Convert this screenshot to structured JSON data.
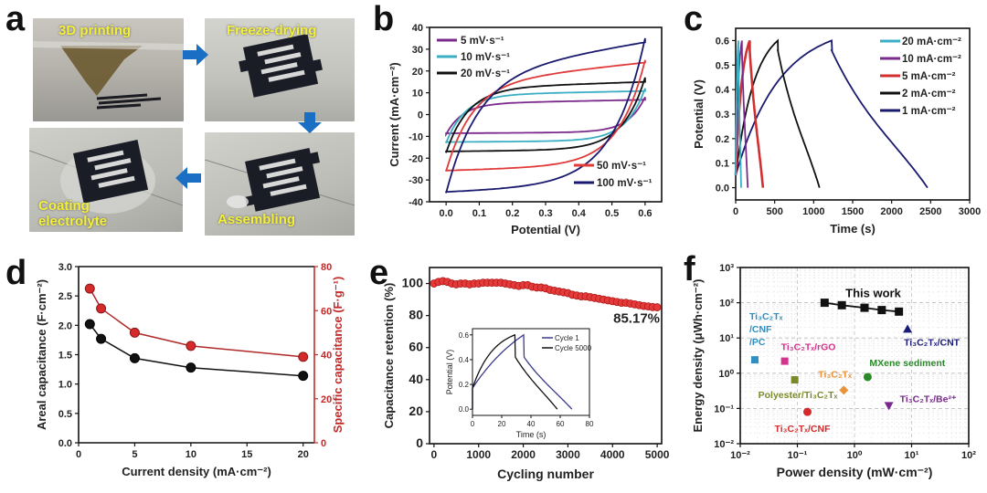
{
  "panels": {
    "a": {
      "letter": "a",
      "steps": [
        {
          "label": "3D printing"
        },
        {
          "label": "Freeze-drying"
        },
        {
          "label": "Assembling"
        },
        {
          "label_line1": "Coating",
          "label_line2": "electrolyte"
        }
      ],
      "arrow_color": "#1a6fc4",
      "label_color": "#f4f03a"
    },
    "b": {
      "letter": "b"
    },
    "c": {
      "letter": "c"
    },
    "d": {
      "letter": "d"
    },
    "e": {
      "letter": "e"
    },
    "f": {
      "letter": "f"
    }
  },
  "chart_data": [
    {
      "id": "b",
      "type": "line",
      "title": "",
      "xlabel": "Potential (V)",
      "ylabel": "Current (mA·cm⁻²)",
      "xlim": [
        -0.05,
        0.65
      ],
      "ylim": [
        -40,
        40
      ],
      "xticks": [
        "0.0",
        "0.1",
        "0.2",
        "0.3",
        "0.4",
        "0.5",
        "0.6"
      ],
      "yticks": [
        "-40",
        "-30",
        "-20",
        "-10",
        "0",
        "10",
        "20",
        "30",
        "40"
      ],
      "legend_top_left": [
        "5 mV·s⁻¹",
        "10 mV·s⁻¹",
        "20 mV·s⁻¹"
      ],
      "legend_bottom_right": [
        "50 mV·s⁻¹",
        "100 mV·s⁻¹"
      ],
      "series": [
        {
          "name": "5 mV·s⁻¹",
          "color": "#7b2a8c",
          "upper_end": 8,
          "upper_plateau": 5,
          "lower_start": -9,
          "lower_plateau": -8
        },
        {
          "name": "10 mV·s⁻¹",
          "color": "#3aaec2",
          "upper_end": 12,
          "upper_plateau": 9,
          "lower_start": -13,
          "lower_plateau": -12
        },
        {
          "name": "20 mV·s⁻¹",
          "color": "#111111",
          "upper_end": 17,
          "upper_plateau": 12,
          "lower_start": -17.5,
          "lower_plateau": -16
        },
        {
          "name": "50 mV·s⁻¹",
          "color": "#e03a3a",
          "upper_end": 25,
          "upper_plateau": 14,
          "lower_start": -26,
          "lower_plateau": -23
        },
        {
          "name": "100 mV·s⁻¹",
          "color": "#1a1a6e",
          "upper_end": 35,
          "upper_plateau": 18,
          "lower_start": -36,
          "lower_plateau": -32
        }
      ]
    },
    {
      "id": "c",
      "type": "line",
      "xlabel": "Time (s)",
      "ylabel": "Potential (V)",
      "xlim": [
        0,
        3000
      ],
      "ylim": [
        -0.05,
        0.65
      ],
      "xticks": [
        "0",
        "500",
        "1000",
        "1500",
        "2000",
        "2500",
        "3000"
      ],
      "yticks": [
        "0.0",
        "0.1",
        "0.2",
        "0.3",
        "0.4",
        "0.5",
        "0.6"
      ],
      "legend": [
        "20 mA·cm⁻²",
        "10 mA·cm⁻²",
        "5 mA·cm⁻²",
        "2 mA·cm⁻²",
        "1 mA·cm⁻²"
      ],
      "series": [
        {
          "name": "20 mA·cm⁻²",
          "color": "#3aaec2",
          "peak_time": 35,
          "end_time": 70
        },
        {
          "name": "10 mA·cm⁻²",
          "color": "#7b2a8c",
          "peak_time": 80,
          "end_time": 155
        },
        {
          "name": "5 mA·cm⁻²",
          "color": "#d23030",
          "peak_time": 180,
          "end_time": 350
        },
        {
          "name": "2 mA·cm⁻²",
          "color": "#111111",
          "peak_time": 540,
          "end_time": 1075
        },
        {
          "name": "1 mA·cm⁻²",
          "color": "#1a1a6e",
          "peak_time": 1230,
          "end_time": 2460
        }
      ]
    },
    {
      "id": "d",
      "type": "line",
      "xlabel": "Current density (mA·cm⁻²)",
      "ylabel": "Areal capacitance (F·cm⁻²)",
      "ylabel_right": "Specific capacitance (F·g⁻¹)",
      "xlim": [
        0,
        21
      ],
      "ylim": [
        0,
        3.0
      ],
      "ylim_right": [
        0,
        80
      ],
      "xticks": [
        "0",
        "5",
        "10",
        "15",
        "20"
      ],
      "yticks": [
        "0.0",
        "0.5",
        "1.0",
        "1.5",
        "2.0",
        "2.5",
        "3.0"
      ],
      "yticks_right": [
        "0",
        "20",
        "40",
        "60",
        "80"
      ],
      "x": [
        1,
        2,
        5,
        10,
        20
      ],
      "series": [
        {
          "name": "Areal capacitance",
          "axis": "left",
          "color": "#111111",
          "values": [
            2.02,
            1.77,
            1.44,
            1.28,
            1.14
          ]
        },
        {
          "name": "Specific capacitance",
          "axis": "right",
          "color": "#d42a2a",
          "values": [
            70,
            61,
            50,
            44,
            39
          ]
        }
      ]
    },
    {
      "id": "e",
      "type": "scatter",
      "xlabel": "Cycling number",
      "ylabel": "Capacitance retention (%)",
      "xlim": [
        -100,
        5100
      ],
      "ylim": [
        0,
        110
      ],
      "xticks": [
        "0",
        "1000",
        "2000",
        "3000",
        "4000",
        "5000"
      ],
      "yticks": [
        "0",
        "20",
        "40",
        "60",
        "80",
        "100"
      ],
      "annotation": "85.17%",
      "color": "#d42a2a",
      "x": [
        0,
        100,
        200,
        300,
        400,
        500,
        600,
        700,
        800,
        900,
        1000,
        1100,
        1200,
        1300,
        1400,
        1500,
        1600,
        1700,
        1800,
        1900,
        2000,
        2100,
        2200,
        2300,
        2400,
        2500,
        2600,
        2700,
        2800,
        2900,
        3000,
        3100,
        3200,
        3300,
        3400,
        3500,
        3600,
        3700,
        3800,
        3900,
        4000,
        4100,
        4200,
        4300,
        4400,
        4500,
        4600,
        4700,
        4800,
        4900,
        5000
      ],
      "values": [
        100,
        101,
        101.5,
        101,
        100,
        99.5,
        100,
        100,
        99.5,
        100,
        100,
        100.5,
        100.5,
        100.5,
        100.5,
        100.5,
        100,
        99.5,
        99,
        98.5,
        99,
        99,
        98,
        97.5,
        97.5,
        97,
        96,
        95.5,
        95,
        94.5,
        94,
        93,
        92.5,
        92,
        92,
        91.5,
        91,
        90.5,
        90,
        89.5,
        89,
        88.5,
        88,
        88,
        87.5,
        87,
        86.5,
        86,
        85.7,
        85.3,
        85.17
      ],
      "inset": {
        "xlabel": "Time (s)",
        "ylabel": "Potential (V)",
        "xlim": [
          0,
          80
        ],
        "ylim": [
          -0.05,
          0.65
        ],
        "xticks": [
          "0",
          "20",
          "40",
          "60",
          "80"
        ],
        "yticks": [
          "0.0",
          "0.2",
          "0.4",
          "0.6"
        ],
        "legend": [
          "Cycle 1",
          "Cycle 5000"
        ],
        "series": [
          {
            "name": "Cycle 1",
            "color": "#3a3a8a",
            "peak_time": 35,
            "end_time": 68
          },
          {
            "name": "Cycle 5000",
            "color": "#111111",
            "peak_time": 29,
            "end_time": 58
          }
        ]
      }
    },
    {
      "id": "f",
      "type": "scatter",
      "scale": "log-log",
      "xlabel": "Power density (mW·cm⁻²)",
      "ylabel": "Energy density (μWh·cm⁻²)",
      "xlim": [
        0.01,
        100
      ],
      "ylim": [
        0.01,
        1000
      ],
      "xticks": [
        "10⁻²",
        "10⁻¹",
        "10⁰",
        "10¹",
        "10²"
      ],
      "yticks": [
        "10⁻²",
        "10⁻¹",
        "10⁰",
        "10¹",
        "10²",
        "10³"
      ],
      "grid": true,
      "this_work": {
        "label": "This work",
        "color": "#111111",
        "x": [
          0.3,
          0.6,
          1.5,
          3,
          6
        ],
        "y": [
          100,
          85,
          72,
          62,
          56
        ]
      },
      "points": [
        {
          "label": "Ti₃C₂Tₓ/CNF/PC",
          "color": "#2e8fc0",
          "marker": "square",
          "x": 0.018,
          "y": 2.4
        },
        {
          "label": "Ti₃C₂Tₓ/rGO",
          "color": "#d6338f",
          "marker": "square",
          "x": 0.06,
          "y": 2.2
        },
        {
          "label": "Polyester/Ti₃C₂Tₓ",
          "color": "#7a8a2a",
          "marker": "square",
          "x": 0.09,
          "y": 0.65
        },
        {
          "label": "Ti₃C₂Tₓ/CNF",
          "color": "#d42a2a",
          "marker": "circle",
          "x": 0.15,
          "y": 0.08
        },
        {
          "label": "Ti₃C₂Tₓ",
          "color": "#e8923a",
          "marker": "diamond",
          "x": 0.65,
          "y": 0.33
        },
        {
          "label": "MXene sediment",
          "color": "#2a8a2a",
          "marker": "circle",
          "x": 1.7,
          "y": 0.78
        },
        {
          "label": "Ti₃C₂Tₓ/Be²⁺",
          "color": "#7a2a8a",
          "marker": "triangle-down",
          "x": 4,
          "y": 0.12
        },
        {
          "label": "Ti₃C₂Tₓ/CNT",
          "color": "#1a1a7a",
          "marker": "triangle-up",
          "x": 8.5,
          "y": 18
        }
      ]
    }
  ]
}
